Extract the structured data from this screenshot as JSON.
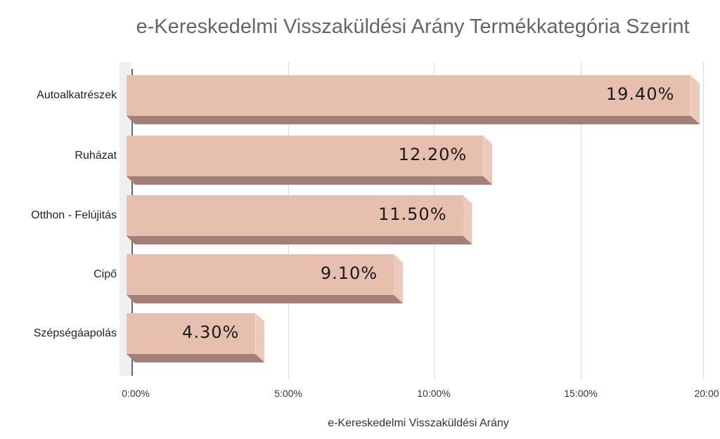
{
  "chart_data": {
    "type": "bar",
    "orientation": "horizontal",
    "style": "3d",
    "title": "e-Kereskedelmi Visszaküldési Arány Termékkategória Szerint",
    "xlabel": "e-Kereskedelmi Visszaküldési Arány",
    "ylabel": "",
    "categories": [
      "Autoalkatrészek",
      "Ruházat",
      "Otthon - Felújitás",
      "Cipő",
      "Szépségáapolás"
    ],
    "values": [
      19.4,
      12.2,
      11.5,
      9.1,
      4.3
    ],
    "value_labels": [
      "19.40%",
      "12.20%",
      "11.50%",
      "9.10%",
      "4.30%"
    ],
    "xlim": [
      0,
      20
    ],
    "x_ticks": [
      0,
      5,
      10,
      15,
      20
    ],
    "x_tick_labels": [
      "0:00%",
      "5:00%",
      "10:00%",
      "15:00%",
      "20:00"
    ],
    "grid": true,
    "legend": null,
    "colors": {
      "bar_front": "#e6bfae",
      "bar_bottom": "#a37f77",
      "bar_side": "#ecc9ba",
      "gridline": "#dcdcdc"
    }
  }
}
